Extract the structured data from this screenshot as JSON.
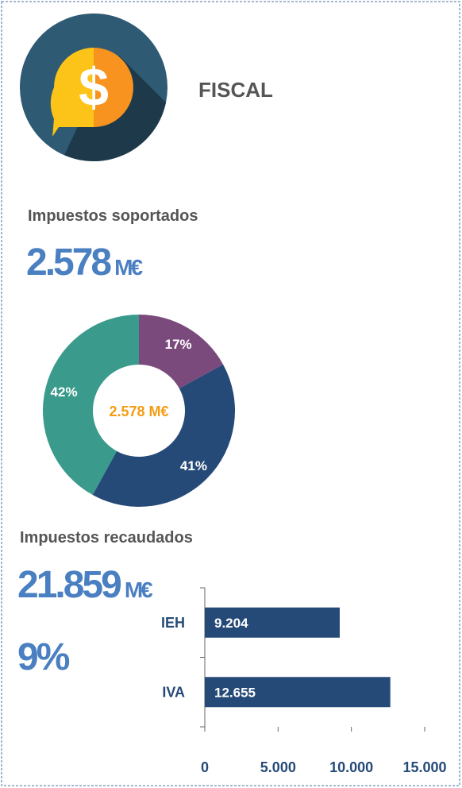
{
  "header": {
    "title": "FISCAL"
  },
  "sections": [
    {
      "title": "Impuestos soportados",
      "amount": {
        "value": "2.578",
        "unit": "M€"
      }
    },
    {
      "title": "Impuestos recaudados",
      "amount": {
        "value": "21.859",
        "unit": "M€"
      },
      "share": "9%"
    }
  ],
  "chart_data": [
    {
      "type": "donut",
      "center_label": "2.578 M€",
      "values": [
        17,
        41,
        42
      ],
      "value_labels": [
        "17%",
        "41%",
        "42%"
      ],
      "colors": [
        "#7b4a7c",
        "#264a78",
        "#3a9b8c"
      ],
      "center_color": "#f39c12"
    },
    {
      "type": "hbar",
      "categories": [
        "IEH",
        "IVA"
      ],
      "values": [
        9204,
        12655
      ],
      "value_labels": [
        "9.204",
        "12.655"
      ],
      "color": "#264a78",
      "xlim": [
        0,
        15000
      ],
      "xticks": [
        0,
        {
          "value": 5000,
          "label": "5.000"
        },
        {
          "value": 10000,
          "label": "10.000"
        },
        {
          "value": 15000,
          "label": "15.000"
        }
      ]
    }
  ]
}
